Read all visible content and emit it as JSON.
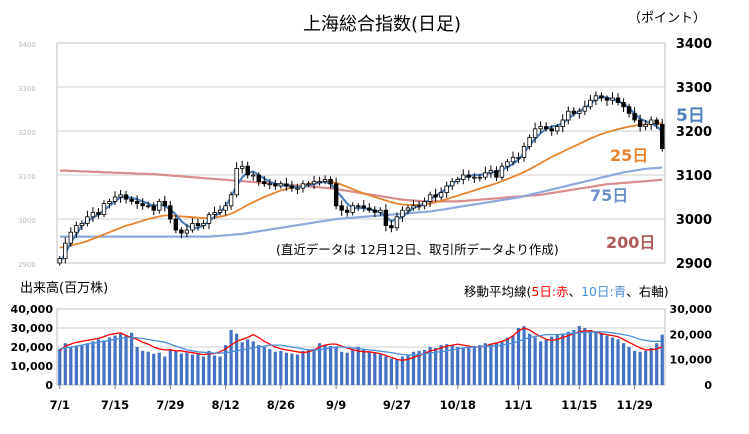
{
  "title": "上海総合指数(日足)",
  "unit_label": "（ポイント）",
  "note": "(直近データは 12月12日、取引所データより作成)",
  "volume_label": "出来高(百万株)",
  "ma_legend": {
    "prefix": "移動平均線(",
    "ma5": "5日:赤",
    "sep1": "、",
    "ma10": "10日:青",
    "suffix": "、右軸)"
  },
  "colors": {
    "up": "#000000",
    "down": "#000000",
    "ma5": "#4f81bd",
    "ma25": "#e7822e",
    "ma75": "#8ea9db",
    "ma200": "#d88c8c",
    "vol_bar": "#4472c4",
    "vol_ma5": "#ff0000",
    "vol_ma10": "#4a90d9",
    "grid": "#cfcfcf"
  },
  "chart_data": [
    {
      "type": "candlestick",
      "title": "上海総合指数(日足)",
      "ylabel": "（ポイント）",
      "ylim": [
        2900,
        3400
      ],
      "y_ticks": [
        2900,
        3000,
        3100,
        3200,
        3300,
        3400
      ],
      "x_ticks": [
        "7/1",
        "7/15",
        "7/29",
        "8/12",
        "8/26",
        "9/9",
        "9/27",
        "10/18",
        "11/1",
        "11/15",
        "11/29"
      ],
      "ma_labels": {
        "ma5": "5日",
        "ma25": "25日",
        "ma75": "75日",
        "ma200": "200日"
      },
      "close": [
        2910,
        2945,
        2970,
        2985,
        2990,
        3005,
        3015,
        3010,
        3035,
        3040,
        3050,
        3055,
        3045,
        3040,
        3035,
        3030,
        3030,
        3020,
        3040,
        3030,
        3000,
        2975,
        2968,
        2975,
        2990,
        2985,
        2990,
        3010,
        3015,
        3020,
        3030,
        3055,
        3115,
        3120,
        3100,
        3100,
        3085,
        3080,
        3080,
        3075,
        3080,
        3075,
        3070,
        3070,
        3080,
        3080,
        3085,
        3085,
        3090,
        3080,
        3030,
        3020,
        3015,
        3030,
        3030,
        3025,
        3020,
        3015,
        3020,
        2985,
        2980,
        3005,
        3020,
        3025,
        3030,
        3030,
        3040,
        3055,
        3050,
        3060,
        3075,
        3085,
        3090,
        3100,
        3095,
        3095,
        3095,
        3105,
        3110,
        3095,
        3120,
        3130,
        3140,
        3140,
        3165,
        3185,
        3205,
        3210,
        3205,
        3200,
        3210,
        3225,
        3245,
        3240,
        3245,
        3255,
        3270,
        3280,
        3275,
        3270,
        3275,
        3265,
        3255,
        3240,
        3225,
        3210,
        3215,
        3225,
        3215,
        3160
      ],
      "ma5": [
        2900,
        2922,
        2946,
        2965,
        2985,
        2995,
        3003,
        3010,
        3020,
        3030,
        3040,
        3050,
        3050,
        3048,
        3045,
        3040,
        3035,
        3030,
        3032,
        3030,
        3022,
        3010,
        2995,
        2985,
        2980,
        2980,
        2985,
        2995,
        3005,
        3015,
        3030,
        3050,
        3075,
        3095,
        3105,
        3108,
        3100,
        3092,
        3085,
        3080,
        3078,
        3075,
        3075,
        3072,
        3074,
        3076,
        3080,
        3082,
        3085,
        3080,
        3065,
        3050,
        3035,
        3025,
        3025,
        3025,
        3022,
        3020,
        3015,
        3005,
        2995,
        3000,
        3005,
        3015,
        3025,
        3030,
        3035,
        3045,
        3052,
        3060,
        3070,
        3080,
        3088,
        3094,
        3098,
        3100,
        3100,
        3102,
        3105,
        3108,
        3112,
        3118,
        3125,
        3135,
        3150,
        3168,
        3182,
        3195,
        3205,
        3210,
        3212,
        3218,
        3228,
        3238,
        3245,
        3252,
        3262,
        3272,
        3278,
        3276,
        3272,
        3268,
        3262,
        3252,
        3240,
        3228,
        3222,
        3218,
        3210,
        3200
      ],
      "ma25": [
        2935,
        2937,
        2940,
        2943,
        2946,
        2950,
        2955,
        2960,
        2965,
        2970,
        2975,
        2980,
        2985,
        2988,
        2992,
        2996,
        3000,
        3003,
        3006,
        3008,
        3008,
        3007,
        3006,
        3005,
        3004,
        3003,
        3002,
        3002,
        3003,
        3005,
        3008,
        3012,
        3018,
        3025,
        3032,
        3038,
        3044,
        3050,
        3055,
        3060,
        3065,
        3068,
        3071,
        3074,
        3077,
        3080,
        3082,
        3084,
        3085,
        3084,
        3082,
        3078,
        3073,
        3068,
        3063,
        3058,
        3054,
        3050,
        3046,
        3042,
        3038,
        3035,
        3033,
        3032,
        3032,
        3032,
        3033,
        3035,
        3038,
        3041,
        3045,
        3049,
        3053,
        3057,
        3061,
        3065,
        3069,
        3073,
        3077,
        3081,
        3086,
        3091,
        3096,
        3101,
        3107,
        3113,
        3120,
        3127,
        3134,
        3141,
        3147,
        3153,
        3159,
        3165,
        3171,
        3177,
        3183,
        3188,
        3193,
        3197,
        3201,
        3204,
        3207,
        3210,
        3212,
        3214,
        3215,
        3216,
        3217,
        3218
      ],
      "ma75": [
        2960,
        2960,
        2960,
        2960,
        2960,
        2960,
        2960,
        2960,
        2960,
        2960,
        2960,
        2960,
        2960,
        2960,
        2960,
        2960,
        2960,
        2960,
        2960,
        2960,
        2960,
        2960,
        2960,
        2960,
        2960,
        2960,
        2960,
        2960,
        2961,
        2962,
        2963,
        2964,
        2965,
        2966,
        2968,
        2970,
        2972,
        2974,
        2976,
        2978,
        2980,
        2982,
        2984,
        2986,
        2988,
        2990,
        2992,
        2994,
        2996,
        2998,
        3000,
        3001,
        3002,
        3003,
        3004,
        3005,
        3006,
        3007,
        3008,
        3009,
        3010,
        3011,
        3012,
        3013,
        3014,
        3015,
        3016,
        3017,
        3019,
        3021,
        3023,
        3025,
        3027,
        3029,
        3031,
        3033,
        3035,
        3037,
        3039,
        3041,
        3043,
        3045,
        3047,
        3049,
        3052,
        3055,
        3058,
        3061,
        3064,
        3067,
        3070,
        3073,
        3076,
        3079,
        3082,
        3085,
        3088,
        3091,
        3094,
        3097,
        3100,
        3103,
        3106,
        3108,
        3110,
        3112,
        3114,
        3115,
        3116,
        3117
      ],
      "ma200": [
        3110,
        3110,
        3109,
        3109,
        3108,
        3108,
        3107,
        3107,
        3106,
        3106,
        3105,
        3105,
        3104,
        3104,
        3103,
        3103,
        3102,
        3102,
        3101,
        3100,
        3099,
        3098,
        3097,
        3096,
        3095,
        3094,
        3093,
        3092,
        3091,
        3090,
        3089,
        3088,
        3087,
        3086,
        3085,
        3084,
        3083,
        3082,
        3081,
        3080,
        3079,
        3078,
        3077,
        3076,
        3075,
        3074,
        3073,
        3072,
        3071,
        3070,
        3068,
        3066,
        3064,
        3062,
        3060,
        3058,
        3056,
        3054,
        3052,
        3050,
        3048,
        3046,
        3044,
        3043,
        3042,
        3041,
        3040,
        3040,
        3040,
        3040,
        3040,
        3040,
        3040,
        3041,
        3042,
        3043,
        3044,
        3045,
        3046,
        3047,
        3048,
        3049,
        3050,
        3051,
        3052,
        3053,
        3054,
        3055,
        3057,
        3059,
        3061,
        3063,
        3065,
        3067,
        3069,
        3071,
        3073,
        3075,
        3077,
        3079,
        3080,
        3081,
        3082,
        3083,
        3084,
        3085,
        3086,
        3087,
        3088,
        3090
      ]
    },
    {
      "type": "bar",
      "title": "出来高(百万株)",
      "ylim": [
        0,
        40000
      ],
      "y_ticks": [
        "0",
        "10,000",
        "20,000",
        "30,000",
        "40,000"
      ],
      "y2lim": [
        0,
        30000
      ],
      "y2_ticks": [
        "0",
        "10,000",
        "20,000",
        "30,000"
      ],
      "values": [
        19000,
        22000,
        20000,
        20500,
        21000,
        22000,
        23000,
        24000,
        23500,
        25000,
        26000,
        27000,
        26000,
        27500,
        20000,
        18000,
        17500,
        16500,
        17000,
        15000,
        19000,
        18000,
        16500,
        17000,
        16000,
        16500,
        15000,
        18000,
        15500,
        15000,
        21000,
        29000,
        27000,
        22500,
        24000,
        23000,
        21000,
        20000,
        19000,
        17500,
        18000,
        17000,
        16500,
        16000,
        18000,
        18500,
        19000,
        22000,
        21000,
        20500,
        20000,
        17500,
        17000,
        19000,
        20000,
        18500,
        17500,
        17000,
        16500,
        15000,
        14000,
        13500,
        15000,
        16000,
        17500,
        18000,
        18500,
        20000,
        19500,
        21000,
        21500,
        21000,
        20000,
        19500,
        20000,
        20500,
        21000,
        22000,
        21500,
        22500,
        23000,
        25000,
        26000,
        30000,
        31000,
        27000,
        25000,
        23000,
        24000,
        25500,
        26500,
        27000,
        28000,
        29000,
        31000,
        30000,
        29000,
        28000,
        27000,
        26000,
        25000,
        24000,
        22000,
        20000,
        18000,
        17500,
        18000,
        19500,
        22000,
        26500
      ],
      "series": [
        {
          "name": "5日",
          "values": [
            18000,
            20500,
            21500,
            22500,
            23000,
            23500,
            24000,
            24500,
            25500,
            26500,
            27000,
            27500,
            26000,
            25000,
            24000,
            22500,
            21500,
            20000,
            19000,
            18500,
            18500,
            18000,
            18000,
            17500,
            17000,
            16500,
            16000,
            16500,
            16500,
            17500,
            19000,
            21000,
            23000,
            24000,
            25000,
            26500,
            25000,
            23000,
            21500,
            20000,
            19000,
            18500,
            18000,
            17500,
            17000,
            17500,
            18500,
            20000,
            21000,
            21500,
            21500,
            20500,
            19500,
            18500,
            18000,
            17500,
            17500,
            17000,
            16500,
            15500,
            14500,
            13500,
            13000,
            13500,
            14500,
            15500,
            16500,
            18000,
            18500,
            19500,
            20500,
            21000,
            21500,
            21000,
            20500,
            20000,
            20000,
            20500,
            21500,
            22000,
            23000,
            24000,
            26000,
            28500,
            30000,
            29000,
            27000,
            25500,
            24000,
            23500,
            24000,
            25000,
            26000,
            27000,
            28000,
            28500,
            28500,
            28000,
            27000,
            26500,
            26000,
            25500,
            24000,
            22500,
            21000,
            19500,
            18500,
            18500,
            19000,
            20000
          ]
        },
        {
          "name": "10日",
          "values": [
            19000,
            19500,
            20000,
            20500,
            21000,
            21500,
            22000,
            22500,
            23000,
            23500,
            24000,
            24500,
            25000,
            25000,
            24800,
            24500,
            24000,
            23500,
            23000,
            22500,
            21500,
            20500,
            19500,
            18500,
            18000,
            17500,
            17200,
            17000,
            16800,
            16800,
            17000,
            17500,
            18000,
            18500,
            19000,
            19500,
            20000,
            20500,
            21000,
            21000,
            21000,
            20500,
            20000,
            19500,
            19000,
            18500,
            18500,
            18500,
            19000,
            19500,
            20000,
            20000,
            19800,
            19500,
            19200,
            18800,
            18500,
            18200,
            17800,
            17400,
            17000,
            16500,
            16000,
            15800,
            15800,
            16000,
            16400,
            16800,
            17200,
            17600,
            18000,
            18500,
            19000,
            19500,
            19800,
            20000,
            20200,
            20400,
            20600,
            20800,
            21000,
            21500,
            22000,
            23000,
            24000,
            25000,
            25500,
            26000,
            26500,
            26500,
            26500,
            26800,
            27000,
            27200,
            27400,
            27600,
            27800,
            28000,
            28000,
            27800,
            27500,
            27000,
            26500,
            26000,
            25000,
            24000,
            23500,
            23000,
            23000,
            23000
          ]
        }
      ]
    }
  ]
}
